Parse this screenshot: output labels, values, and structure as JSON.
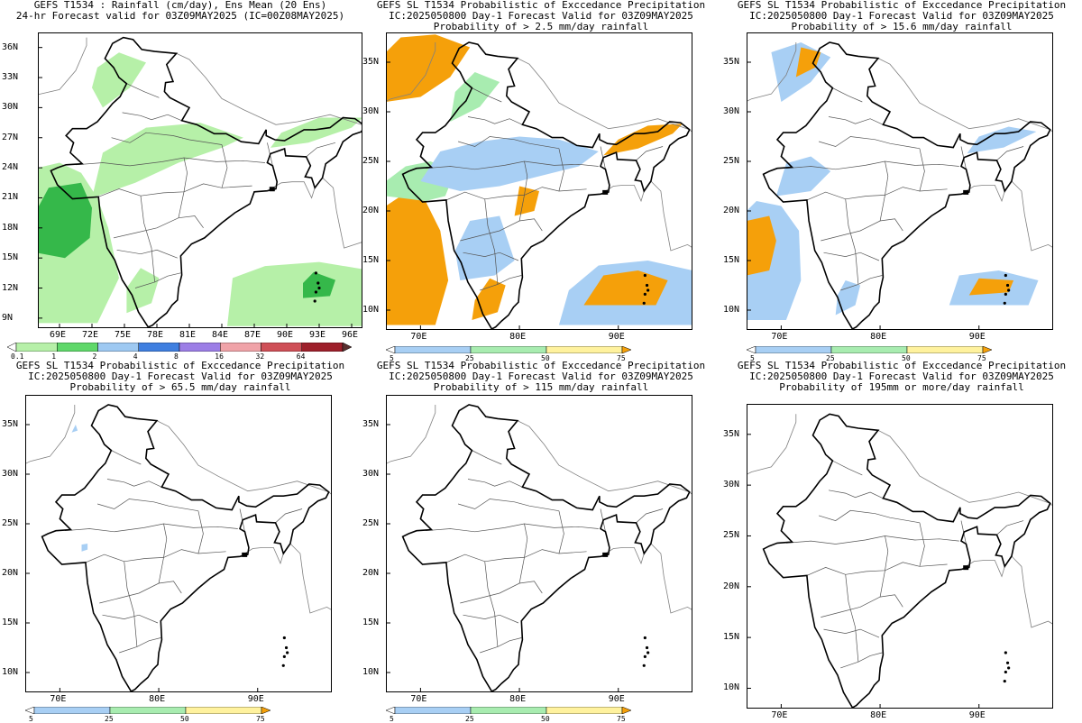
{
  "panels": [
    {
      "id": "p1",
      "title_lines": [
        "GEFS T1534 : Rainfall (cm/day), Ens Mean (20 Ens)",
        "24-hr Forecast valid for 03Z09MAY2025 (IC=00Z08MAY2025)"
      ],
      "lat_labels": [
        "36N",
        "33N",
        "30N",
        "27N",
        "24N",
        "21N",
        "18N",
        "15N",
        "12N",
        "9N"
      ],
      "lon_labels": [
        "69E",
        "72E",
        "75E",
        "78E",
        "81E",
        "84E",
        "87E",
        "90E",
        "93E",
        "96E"
      ],
      "colorbar_labels": [
        "0.1",
        "1",
        "2",
        "4",
        "8",
        "16",
        "32",
        "64"
      ],
      "colorbar_colors": [
        "#ffffff",
        "#b6f0a8",
        "#5fd86a",
        "#9ec9f2",
        "#3f7fe0",
        "#9c7ee6",
        "#f0a3a8",
        "#cf4f57",
        "#9e1f2a",
        "#5a3030"
      ]
    },
    {
      "id": "p2",
      "title_lines": [
        "GEFS SL T1534 Probabilistic of Exccedance Precipitation",
        "IC:2025050800 Day-1 Forecast Valid for 03Z09MAY2025",
        "Probability of > 2.5 mm/day rainfall"
      ],
      "lat_labels": [
        "35N",
        "30N",
        "25N",
        "20N",
        "15N",
        "10N"
      ],
      "lon_labels": [
        "70E",
        "80E",
        "90E"
      ],
      "colorbar_labels": [
        "5",
        "25",
        "50",
        "75"
      ],
      "colorbar_colors": [
        "#ffffff",
        "#a8cff4",
        "#a8ecb0",
        "#fff29e",
        "#f5a00a"
      ]
    },
    {
      "id": "p3",
      "title_lines": [
        "GEFS SL T1534 Probabilistic of Exccedance Precipitation",
        "IC:2025050800 Day-1 Forecast Valid for 03Z09MAY2025",
        "Probability of > 15.6 mm/day rainfall"
      ],
      "lat_labels": [
        "35N",
        "30N",
        "25N",
        "20N",
        "15N",
        "10N"
      ],
      "lon_labels": [
        "70E",
        "80E",
        "90E"
      ],
      "colorbar_labels": [
        "5",
        "25",
        "50",
        "75"
      ],
      "colorbar_colors": [
        "#ffffff",
        "#a8cff4",
        "#a8ecb0",
        "#fff29e",
        "#f5a00a"
      ]
    },
    {
      "id": "p4",
      "title_lines": [
        "GEFS SL T1534 Probabilistic of Exccedance Precipitation",
        "IC:2025050800 Day-1 Forecast Valid for 03Z09MAY2025",
        "Probability of > 65.5 mm/day rainfall"
      ],
      "lat_labels": [
        "35N",
        "30N",
        "25N",
        "20N",
        "15N",
        "10N"
      ],
      "lon_labels": [
        "70E",
        "80E",
        "90E"
      ],
      "colorbar_labels": [
        "5",
        "25",
        "50",
        "75"
      ],
      "colorbar_colors": [
        "#ffffff",
        "#a8cff4",
        "#a8ecb0",
        "#fff29e",
        "#f5a00a"
      ]
    },
    {
      "id": "p5",
      "title_lines": [
        "GEFS SL T1534 Probabilistic of Exccedance Precipitation",
        "IC:2025050800 Day-1 Forecast Valid for 03Z09MAY2025",
        "Probability of > 115 mm/day rainfall"
      ],
      "lat_labels": [
        "35N",
        "30N",
        "25N",
        "20N",
        "15N",
        "10N"
      ],
      "lon_labels": [
        "70E",
        "80E",
        "90E"
      ],
      "colorbar_labels": [
        "5",
        "25",
        "50",
        "75"
      ],
      "colorbar_colors": [
        "#ffffff",
        "#a8cff4",
        "#a8ecb0",
        "#fff29e",
        "#f5a00a"
      ]
    },
    {
      "id": "p6",
      "title_lines": [
        "GEFS SL T1534 Probabilistic of Exccedance Precipitation",
        "IC:2025050800 Day-1 Forecast Valid for 03Z09MAY2025",
        "Probability of 195mm or more/day rainfall"
      ],
      "lat_labels": [
        "35N",
        "30N",
        "25N",
        "20N",
        "15N",
        "10N"
      ],
      "lon_labels": [
        "70E",
        "80E",
        "90E"
      ],
      "colorbar_labels": [],
      "colorbar_colors": []
    }
  ],
  "colors": {
    "green_light": "#b6f0a8",
    "green_dark": "#35b84a",
    "blue_light": "#a8cff4",
    "green_prob": "#a8ecb0",
    "yellow_prob": "#fff29e",
    "orange_prob": "#f5a00a"
  }
}
